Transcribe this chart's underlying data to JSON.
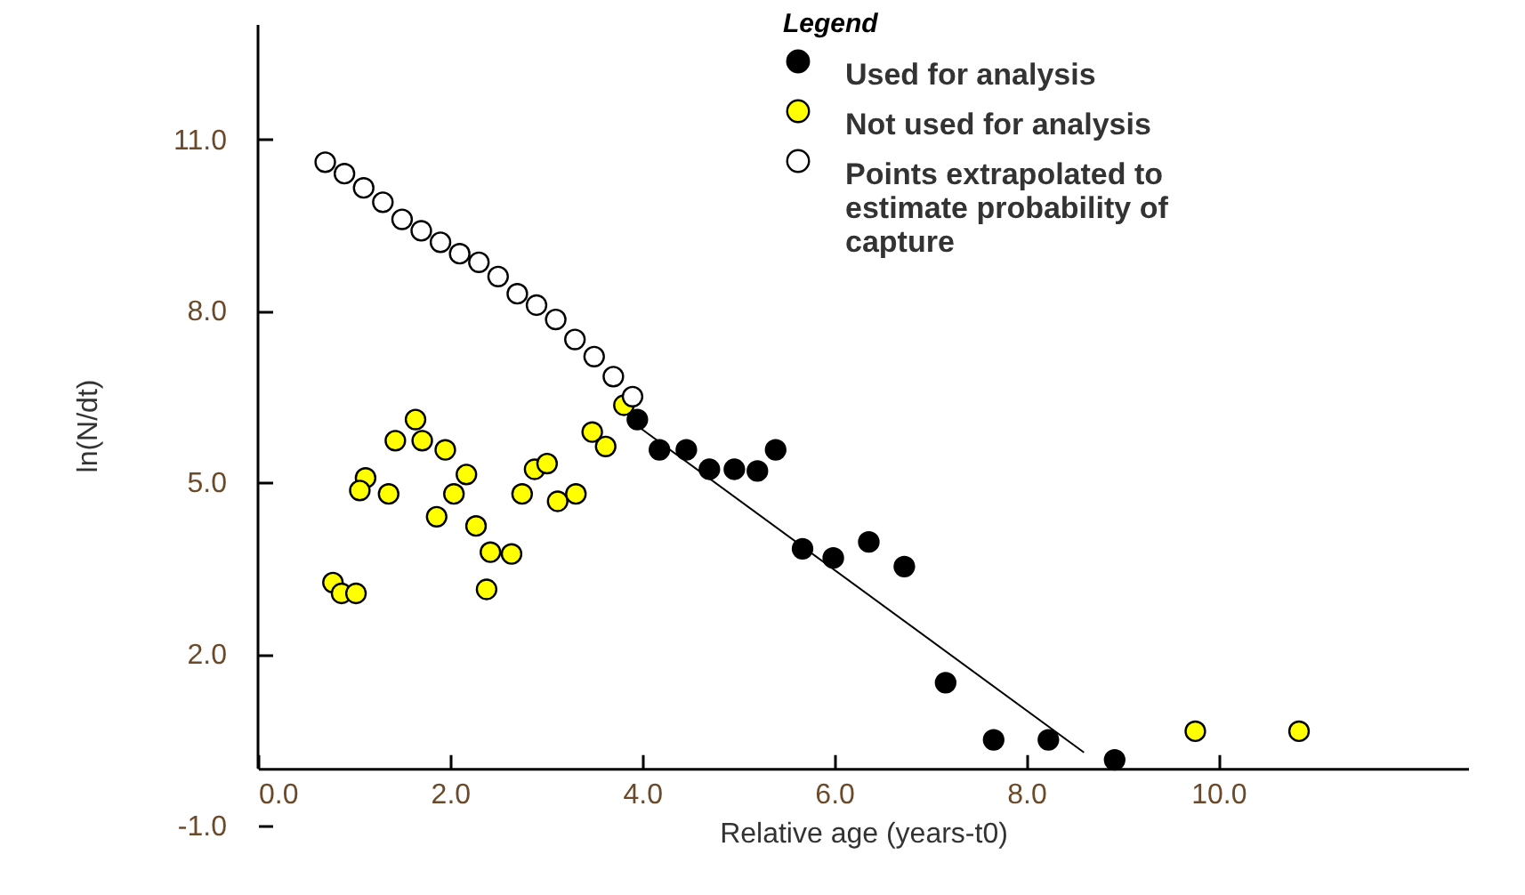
{
  "chart_data": {
    "type": "scatter",
    "xlabel": "Relative age (years-t0)",
    "ylabel": "ln(N/dt)",
    "legend_title": "Legend",
    "legend": "top right",
    "marker": "circle",
    "xlim": [
      0,
      12.6
    ],
    "ylim": [
      -1,
      13
    ],
    "xticks": [
      {
        "value": 0,
        "label": "0.0"
      },
      {
        "value": 2,
        "label": "2.0"
      },
      {
        "value": 4,
        "label": "4.0"
      },
      {
        "value": 6,
        "label": "6.0"
      },
      {
        "value": 8,
        "label": "8.0"
      },
      {
        "value": 10,
        "label": "10.0"
      }
    ],
    "yticks": [
      {
        "value": -1,
        "label": "-1.0"
      },
      {
        "value": 2,
        "label": "2.0"
      },
      {
        "value": 5,
        "label": "5.0"
      },
      {
        "value": 8,
        "label": "8.0"
      },
      {
        "value": 11,
        "label": "11.0"
      }
    ],
    "series": [
      {
        "name": "Used for analysis",
        "color": "#000000",
        "x": [
          3.95,
          4.18,
          4.46,
          4.7,
          4.96,
          5.2,
          5.39,
          5.67,
          5.99,
          6.36,
          6.73,
          7.16,
          7.66,
          8.23,
          8.92
        ],
        "values": [
          6.1,
          5.57,
          5.57,
          5.23,
          5.23,
          5.2,
          5.57,
          3.84,
          3.68,
          3.96,
          3.53,
          1.5,
          0.5,
          0.5,
          0.15
        ]
      },
      {
        "name": "Not used for analysis",
        "color": "#ffff00",
        "x": [
          0.78,
          0.87,
          1.02,
          1.12,
          1.06,
          1.36,
          1.43,
          1.64,
          1.71,
          1.95,
          1.86,
          2.17,
          2.04,
          2.27,
          2.42,
          2.64,
          2.38,
          2.75,
          2.88,
          3.01,
          3.12,
          3.31,
          3.48,
          3.62,
          3.81,
          9.76,
          10.84
        ],
        "values": [
          3.25,
          3.06,
          3.06,
          5.08,
          4.86,
          4.8,
          5.73,
          6.1,
          5.73,
          5.57,
          4.4,
          5.14,
          4.8,
          4.24,
          3.78,
          3.75,
          3.13,
          4.8,
          5.23,
          5.33,
          4.67,
          4.8,
          5.88,
          5.63,
          6.35,
          0.65,
          0.65
        ]
      },
      {
        "name": "Points extrapolated to estimate probability of capture",
        "color": "#ffffff",
        "x": [
          0.7,
          0.9,
          1.1,
          1.3,
          1.5,
          1.7,
          1.9,
          2.1,
          2.3,
          2.5,
          2.7,
          2.9,
          3.1,
          3.3,
          3.5,
          3.7,
          3.9
        ],
        "values": [
          10.6,
          10.4,
          10.15,
          9.9,
          9.6,
          9.4,
          9.2,
          9.0,
          8.85,
          8.6,
          8.3,
          8.1,
          7.85,
          7.5,
          7.2,
          6.85,
          6.5
        ]
      },
      {
        "type": "line",
        "marker": "none",
        "color": "#000000",
        "x": [
          3.9,
          8.6
        ],
        "values": [
          6.05,
          0.28
        ]
      }
    ]
  }
}
